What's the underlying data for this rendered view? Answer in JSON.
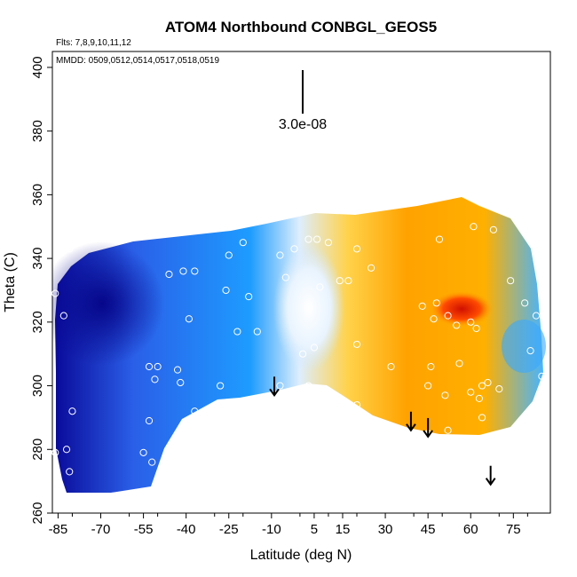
{
  "chart_data": {
    "type": "heatmap",
    "title": "ATOM4 Northbound CONBGL_GEOS5",
    "annotations": {
      "flights": "Flts: 7,8,9,10,11,12",
      "dates": "MMDD: 0509,0512,0514,0517,0518,0519",
      "scale_label": "3.0e-08"
    },
    "xlabel": "Latitude (deg N)",
    "ylabel": "Theta (C)",
    "xlim": [
      -87,
      88
    ],
    "ylim": [
      260,
      405
    ],
    "x_ticks": [
      "-85",
      "-70",
      "-55",
      "-40",
      "-25",
      "-10",
      "5",
      "15",
      "30",
      "45",
      "60",
      "75"
    ],
    "x_tick_values": [
      -85,
      -70,
      -55,
      -40,
      -25,
      -10,
      5,
      15,
      30,
      45,
      60,
      75
    ],
    "y_ticks": [
      "260",
      "280",
      "300",
      "320",
      "340",
      "360",
      "380",
      "400"
    ],
    "y_tick_values": [
      260,
      280,
      300,
      320,
      340,
      360,
      380,
      400
    ],
    "arrows": [
      {
        "lat": -9,
        "theta": 297
      },
      {
        "lat": 39,
        "theta": 286
      },
      {
        "lat": 45,
        "theta": 284
      },
      {
        "lat": 67,
        "theta": 269
      }
    ],
    "colors": {
      "dark": "#0a0a9a",
      "mid": "#2a5fe8",
      "light": "#1e9cff",
      "pale": "#ddeeff",
      "yellow": "#ffd24a",
      "orange": "#ffa200",
      "red": "#e02000",
      "marker": "#ffffff"
    },
    "observations": [
      {
        "lat": -86,
        "theta": 329
      },
      {
        "lat": -83,
        "theta": 322
      },
      {
        "lat": -81,
        "theta": 343
      },
      {
        "lat": -80,
        "theta": 292
      },
      {
        "lat": -82,
        "theta": 280
      },
      {
        "lat": -81,
        "theta": 273
      },
      {
        "lat": -86,
        "theta": 279
      },
      {
        "lat": -55,
        "theta": 279
      },
      {
        "lat": -52,
        "theta": 276
      },
      {
        "lat": -53,
        "theta": 306
      },
      {
        "lat": -50,
        "theta": 306
      },
      {
        "lat": -51,
        "theta": 302
      },
      {
        "lat": -53,
        "theta": 289
      },
      {
        "lat": -46,
        "theta": 335
      },
      {
        "lat": -41,
        "theta": 336
      },
      {
        "lat": -37,
        "theta": 336
      },
      {
        "lat": -39,
        "theta": 321
      },
      {
        "lat": -43,
        "theta": 305
      },
      {
        "lat": -42,
        "theta": 301
      },
      {
        "lat": -37,
        "theta": 292
      },
      {
        "lat": -25,
        "theta": 341
      },
      {
        "lat": -20,
        "theta": 345
      },
      {
        "lat": -26,
        "theta": 330
      },
      {
        "lat": -18,
        "theta": 328
      },
      {
        "lat": -22,
        "theta": 317
      },
      {
        "lat": -15,
        "theta": 317
      },
      {
        "lat": -28,
        "theta": 300
      },
      {
        "lat": -7,
        "theta": 341
      },
      {
        "lat": -2,
        "theta": 343
      },
      {
        "lat": -5,
        "theta": 334
      },
      {
        "lat": 3,
        "theta": 346
      },
      {
        "lat": 6,
        "theta": 346
      },
      {
        "lat": 10,
        "theta": 345
      },
      {
        "lat": 14,
        "theta": 333
      },
      {
        "lat": 17,
        "theta": 333
      },
      {
        "lat": 20,
        "theta": 343
      },
      {
        "lat": 7,
        "theta": 331
      },
      {
        "lat": 25,
        "theta": 337
      },
      {
        "lat": 5,
        "theta": 312
      },
      {
        "lat": 1,
        "theta": 310
      },
      {
        "lat": 20,
        "theta": 313
      },
      {
        "lat": 3,
        "theta": 300
      },
      {
        "lat": -7,
        "theta": 300
      },
      {
        "lat": 14,
        "theta": 295
      },
      {
        "lat": 20,
        "theta": 294
      },
      {
        "lat": 32,
        "theta": 306
      },
      {
        "lat": 43,
        "theta": 325
      },
      {
        "lat": 48,
        "theta": 326
      },
      {
        "lat": 47,
        "theta": 321
      },
      {
        "lat": 52,
        "theta": 322
      },
      {
        "lat": 55,
        "theta": 319
      },
      {
        "lat": 60,
        "theta": 320
      },
      {
        "lat": 62,
        "theta": 318
      },
      {
        "lat": 46,
        "theta": 306
      },
      {
        "lat": 56,
        "theta": 307
      },
      {
        "lat": 45,
        "theta": 300
      },
      {
        "lat": 51,
        "theta": 297
      },
      {
        "lat": 60,
        "theta": 298
      },
      {
        "lat": 63,
        "theta": 296
      },
      {
        "lat": 64,
        "theta": 300
      },
      {
        "lat": 66,
        "theta": 301
      },
      {
        "lat": 70,
        "theta": 299
      },
      {
        "lat": 64,
        "theta": 290
      },
      {
        "lat": 52,
        "theta": 286
      },
      {
        "lat": 45,
        "theta": 285
      },
      {
        "lat": 61,
        "theta": 350
      },
      {
        "lat": 68,
        "theta": 349
      },
      {
        "lat": 79,
        "theta": 326
      },
      {
        "lat": 83,
        "theta": 322
      },
      {
        "lat": 81,
        "theta": 311
      },
      {
        "lat": 85,
        "theta": 303
      },
      {
        "lat": 49,
        "theta": 346
      },
      {
        "lat": 76,
        "theta": 354
      },
      {
        "lat": 74,
        "theta": 333
      }
    ]
  }
}
